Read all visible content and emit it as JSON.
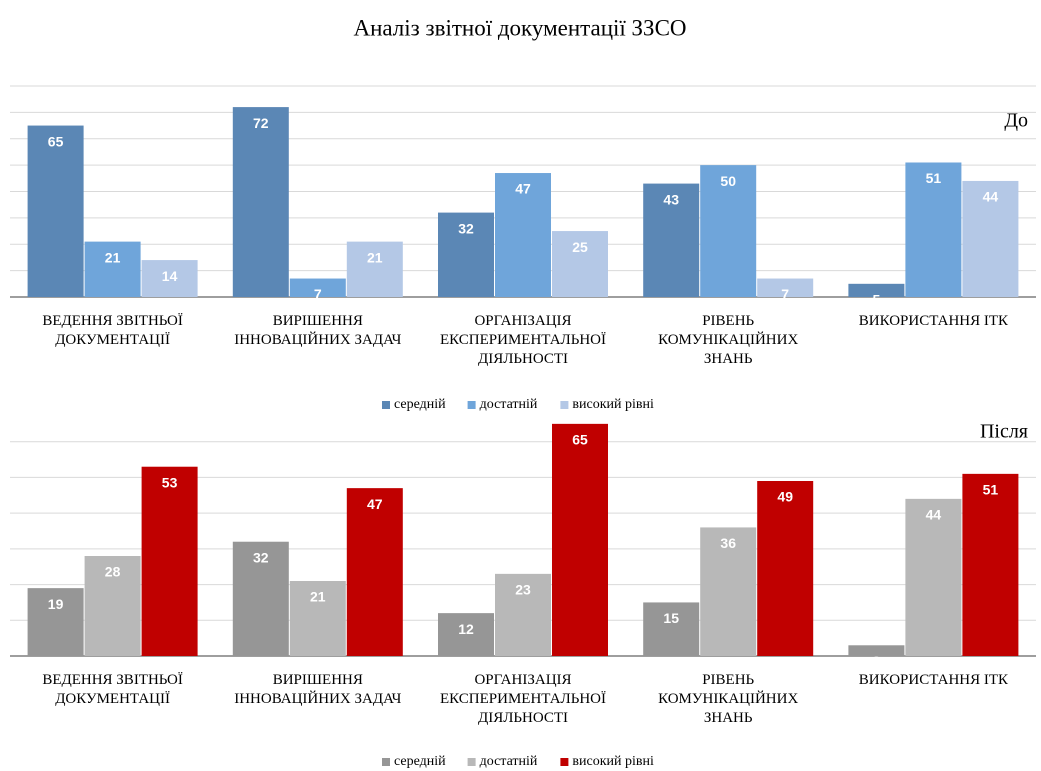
{
  "title": "Аналіз звітної документації ЗЗСО",
  "chart_data": [
    {
      "type": "bar",
      "label": "До",
      "categories": [
        "ВЕДЕННЯ ЗВІТНЬОЇ\nДОКУМЕНТАЦІЇ",
        "ВИРІШЕННЯ\nІННОВАЦІЙНИХ ЗАДАЧ",
        "ОРГАНІЗАЦІЯ\nЕКСПЕРИМЕНТАЛЬНОЇ\nДІЯЛЬНОСТІ",
        "РІВЕНЬ\nКОМУНІКАЦІЙНИХ\nЗНАНЬ",
        "ВИКОРИСТАННЯ ІТК"
      ],
      "series": [
        {
          "name": "середній",
          "color": "#5b87b5",
          "values": [
            65,
            72,
            32,
            43,
            5
          ]
        },
        {
          "name": "достатній",
          "color": "#6fa5da",
          "values": [
            21,
            7,
            47,
            50,
            51
          ]
        },
        {
          "name": "високий рівні",
          "color": "#b4c8e6",
          "values": [
            14,
            21,
            25,
            7,
            44
          ]
        }
      ],
      "ylim": [
        0,
        80
      ],
      "yticks": [
        0,
        10,
        20,
        30,
        40,
        50,
        60,
        70,
        80
      ],
      "grid": true
    },
    {
      "type": "bar",
      "label": "Після",
      "categories": [
        "ВЕДЕННЯ ЗВІТНЬОЇ\nДОКУМЕНТАЦІЇ",
        "ВИРІШЕННЯ\nІННОВАЦІЙНИХ ЗАДАЧ",
        "ОРГАНІЗАЦІЯ\nЕКСПЕРИМЕНТАЛЬНОЇ\nДІЯЛЬНОСТІ",
        "РІВЕНЬ\nКОМУНІКАЦІЙНИХ\nЗНАНЬ",
        "ВИКОРИСТАННЯ ІТК"
      ],
      "series": [
        {
          "name": "середній",
          "color": "#969696",
          "values": [
            19,
            32,
            12,
            15,
            3
          ]
        },
        {
          "name": "достатній",
          "color": "#b8b8b8",
          "values": [
            28,
            21,
            23,
            36,
            44
          ]
        },
        {
          "name": "високий рівні",
          "color": "#c00000",
          "values": [
            53,
            47,
            65,
            49,
            51
          ]
        }
      ],
      "ylim": [
        0,
        70
      ],
      "yticks": [
        0,
        10,
        20,
        30,
        40,
        50,
        60
      ],
      "grid": true
    }
  ]
}
